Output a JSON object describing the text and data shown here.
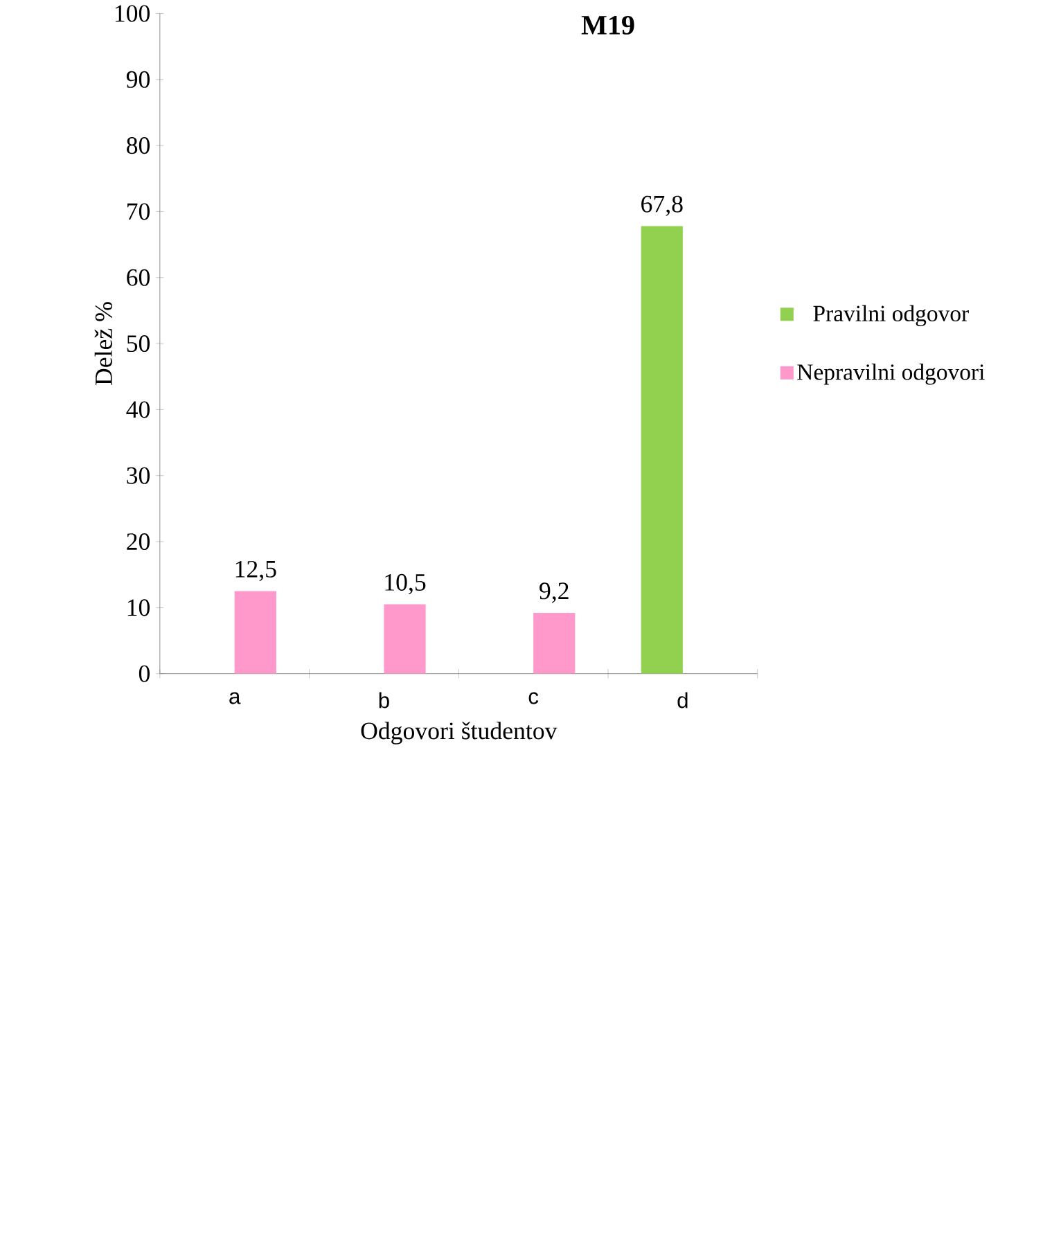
{
  "chart_data": {
    "type": "bar",
    "title": "M19",
    "xlabel": "Odgovori študentov",
    "ylabel": "Delež %",
    "categories": [
      "a",
      "b",
      "c",
      "d"
    ],
    "series": [
      {
        "name": "Pravilni odgovor",
        "color": "#92d050",
        "values": [
          null,
          null,
          null,
          67.8
        ],
        "value_labels": [
          null,
          null,
          null,
          "67,8"
        ]
      },
      {
        "name": "Nepravilni odgovori",
        "color": "#ff99cc",
        "values": [
          12.5,
          10.5,
          9.2,
          null
        ],
        "value_labels": [
          "12,5",
          "10,5",
          "9,2",
          null
        ]
      }
    ],
    "ylim": [
      0,
      100
    ],
    "yticks": [
      0,
      10,
      20,
      30,
      40,
      50,
      60,
      70,
      80,
      90,
      100
    ],
    "grid": false,
    "legend": "right"
  }
}
